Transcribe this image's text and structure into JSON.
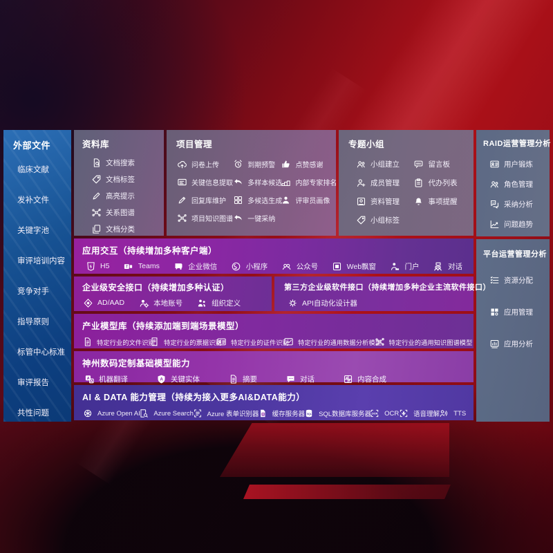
{
  "colors": {
    "sidebar_blue": "#11498f",
    "panel_gray": "#6b6a84",
    "panel_slate": "#5d7590",
    "row_purple": "#86239f",
    "row_indigo": "#4c37a0",
    "background_red": "#a50f18",
    "text_white": "#ffffff"
  },
  "left_sidebar": {
    "title": "外部文件",
    "items": [
      {
        "label": "临床文献",
        "icon": "dot-icon"
      },
      {
        "label": "发补文件",
        "icon": "dot-icon"
      },
      {
        "label": "关键字池",
        "icon": "dot-icon"
      },
      {
        "label": "审评培训内容",
        "icon": "dot-icon"
      },
      {
        "label": "竞争对手",
        "icon": "dot-icon"
      },
      {
        "label": "指导原则",
        "icon": "dot-icon"
      },
      {
        "label": "标管中心标准",
        "icon": "dot-icon"
      },
      {
        "label": "审评报告",
        "icon": "dot-icon"
      },
      {
        "label": "共性问题",
        "icon": "dot-icon"
      }
    ]
  },
  "panels": {
    "library": {
      "title": "资料库",
      "items": [
        {
          "label": "文档搜索",
          "icon": "document-search-icon"
        },
        {
          "label": "文档标签",
          "icon": "tag-icon"
        },
        {
          "label": "高亮提示",
          "icon": "highlighter-icon"
        },
        {
          "label": "关系图谱",
          "icon": "knowledge-graph-icon"
        },
        {
          "label": "文档分类",
          "icon": "documents-icon"
        }
      ]
    },
    "project": {
      "title": "项目管理",
      "items": [
        {
          "label": "问卷上传",
          "icon": "cloud-upload-icon"
        },
        {
          "label": "到期预警",
          "icon": "alarm-icon"
        },
        {
          "label": "点赞感谢",
          "icon": "thumbs-up-icon"
        },
        {
          "label": "关键信息提取",
          "icon": "info-card-icon"
        },
        {
          "label": "多样本候选",
          "icon": "reply-arrow-icon"
        },
        {
          "label": "内部专家排名",
          "icon": "ranking-icon"
        },
        {
          "label": "回复库维护",
          "icon": "pen-icon"
        },
        {
          "label": "多候选生成",
          "icon": "grid-icon"
        },
        {
          "label": "评审员画像",
          "icon": "person-icon"
        },
        {
          "label": "项目知识图谱",
          "icon": "knowledge-graph-icon"
        },
        {
          "label": "一键采纳",
          "icon": "reply-arrow-icon"
        }
      ]
    },
    "group": {
      "title": "专题小组",
      "items": [
        {
          "label": "小组建立",
          "icon": "people-icon"
        },
        {
          "label": "留言板",
          "icon": "message-board-icon"
        },
        {
          "label": "成员管理",
          "icon": "person-add-icon"
        },
        {
          "label": "代办列表",
          "icon": "clipboard-icon"
        },
        {
          "label": "资料管理",
          "icon": "album-icon"
        },
        {
          "label": "事项提醒",
          "icon": "bell-icon"
        },
        {
          "label": "小组标签",
          "icon": "tag-icon"
        }
      ]
    },
    "raid": {
      "title": "RAID运营管理分析",
      "items": [
        {
          "label": "用户锻炼",
          "icon": "id-card-icon"
        },
        {
          "label": "角色管理",
          "icon": "people-icon"
        },
        {
          "label": "采纳分析",
          "icon": "qa-chat-icon"
        },
        {
          "label": "问题趋势",
          "icon": "trend-chart-icon"
        }
      ]
    },
    "platform": {
      "title": "平台运营管理分析",
      "items": [
        {
          "label": "资源分配",
          "icon": "resource-list-icon"
        },
        {
          "label": "应用管理",
          "icon": "apps-grid-icon"
        },
        {
          "label": "应用分析",
          "icon": "app-analytics-icon"
        }
      ]
    }
  },
  "rows": {
    "interaction": {
      "title": "应用交互（持续增加多种客户端）",
      "items": [
        {
          "label": "H5",
          "icon": "html5-icon"
        },
        {
          "label": "Teams",
          "icon": "teams-icon"
        },
        {
          "label": "企业微信",
          "icon": "wechat-work-icon"
        },
        {
          "label": "小程序",
          "icon": "miniprogram-icon"
        },
        {
          "label": "公众号",
          "icon": "official-account-icon"
        },
        {
          "label": "Web飘窗",
          "icon": "web-window-icon"
        },
        {
          "label": "门户",
          "icon": "portal-icon"
        },
        {
          "label": "对话",
          "icon": "dialog-icon"
        }
      ]
    },
    "security": {
      "title": "企业级安全接口（持续增加多种认证）",
      "items": [
        {
          "label": "AD/AAD",
          "icon": "azure-ad-icon"
        },
        {
          "label": "本地账号",
          "icon": "local-account-icon"
        },
        {
          "label": "组织定义",
          "icon": "org-define-icon"
        }
      ]
    },
    "third_party": {
      "title": "第三方企业级软件接口（持续增加多种企业主流软件接口）",
      "items": [
        {
          "label": "API自动化设计器",
          "icon": "api-gear-icon"
        }
      ]
    },
    "industry_models": {
      "title": "产业模型库（持续添加端到端场景模型）",
      "items": [
        {
          "label": "特定行业的文件识别",
          "icon": "document-icon"
        },
        {
          "label": "特定行业的票据识别",
          "icon": "receipt-icon"
        },
        {
          "label": "特定行业的证件识别",
          "icon": "id-card-icon"
        },
        {
          "label": "特定行业的通用数据分析模型",
          "icon": "image-chart-icon"
        },
        {
          "label": "特定行业的通用知识图谱模型",
          "icon": "knowledge-graph-icon"
        }
      ]
    },
    "base_models": {
      "title": "神州数码定制基础模型能力",
      "items": [
        {
          "label": "机器翻译",
          "icon": "translate-icon"
        },
        {
          "label": "关键实体",
          "icon": "entity-shield-icon"
        },
        {
          "label": "摘要",
          "icon": "summary-doc-icon"
        },
        {
          "label": "对话",
          "icon": "chat-bubble-icon"
        },
        {
          "label": "内容合成",
          "icon": "compose-icon"
        }
      ]
    },
    "ai_data": {
      "title": "AI & DATA 能力管理（持续为接入更多AI&DATA能力）",
      "items": [
        {
          "label": "Azure Open AI",
          "icon": "openai-icon"
        },
        {
          "label": "Azure Search",
          "icon": "azure-search-icon"
        },
        {
          "label": "Azure 表单识别器",
          "icon": "form-recognizer-icon"
        },
        {
          "label": "缓存服务器",
          "icon": "cache-server-icon"
        },
        {
          "label": "SQL数据库服务器",
          "icon": "sql-database-icon"
        },
        {
          "label": "OCR",
          "icon": "ocr-icon"
        },
        {
          "label": "语音理解",
          "icon": "speech-understanding-icon"
        },
        {
          "label": "TTS",
          "icon": "tts-icon"
        }
      ]
    }
  }
}
